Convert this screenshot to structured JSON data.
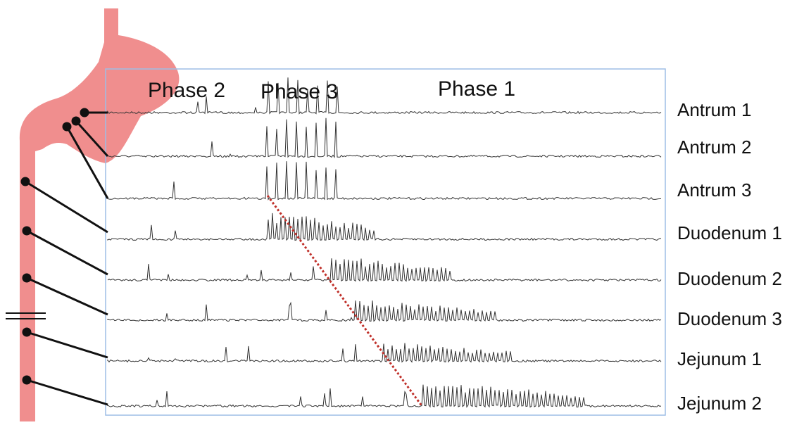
{
  "phases": [
    "Phase 2",
    "Phase 3",
    "Phase 1"
  ],
  "traces": [
    "Antrum 1",
    "Antrum 2",
    "Antrum 3",
    "Duodenum 1",
    "Duodenum 2",
    "Duodenum 3",
    "Jejunum 1",
    "Jejunum 2"
  ]
}
